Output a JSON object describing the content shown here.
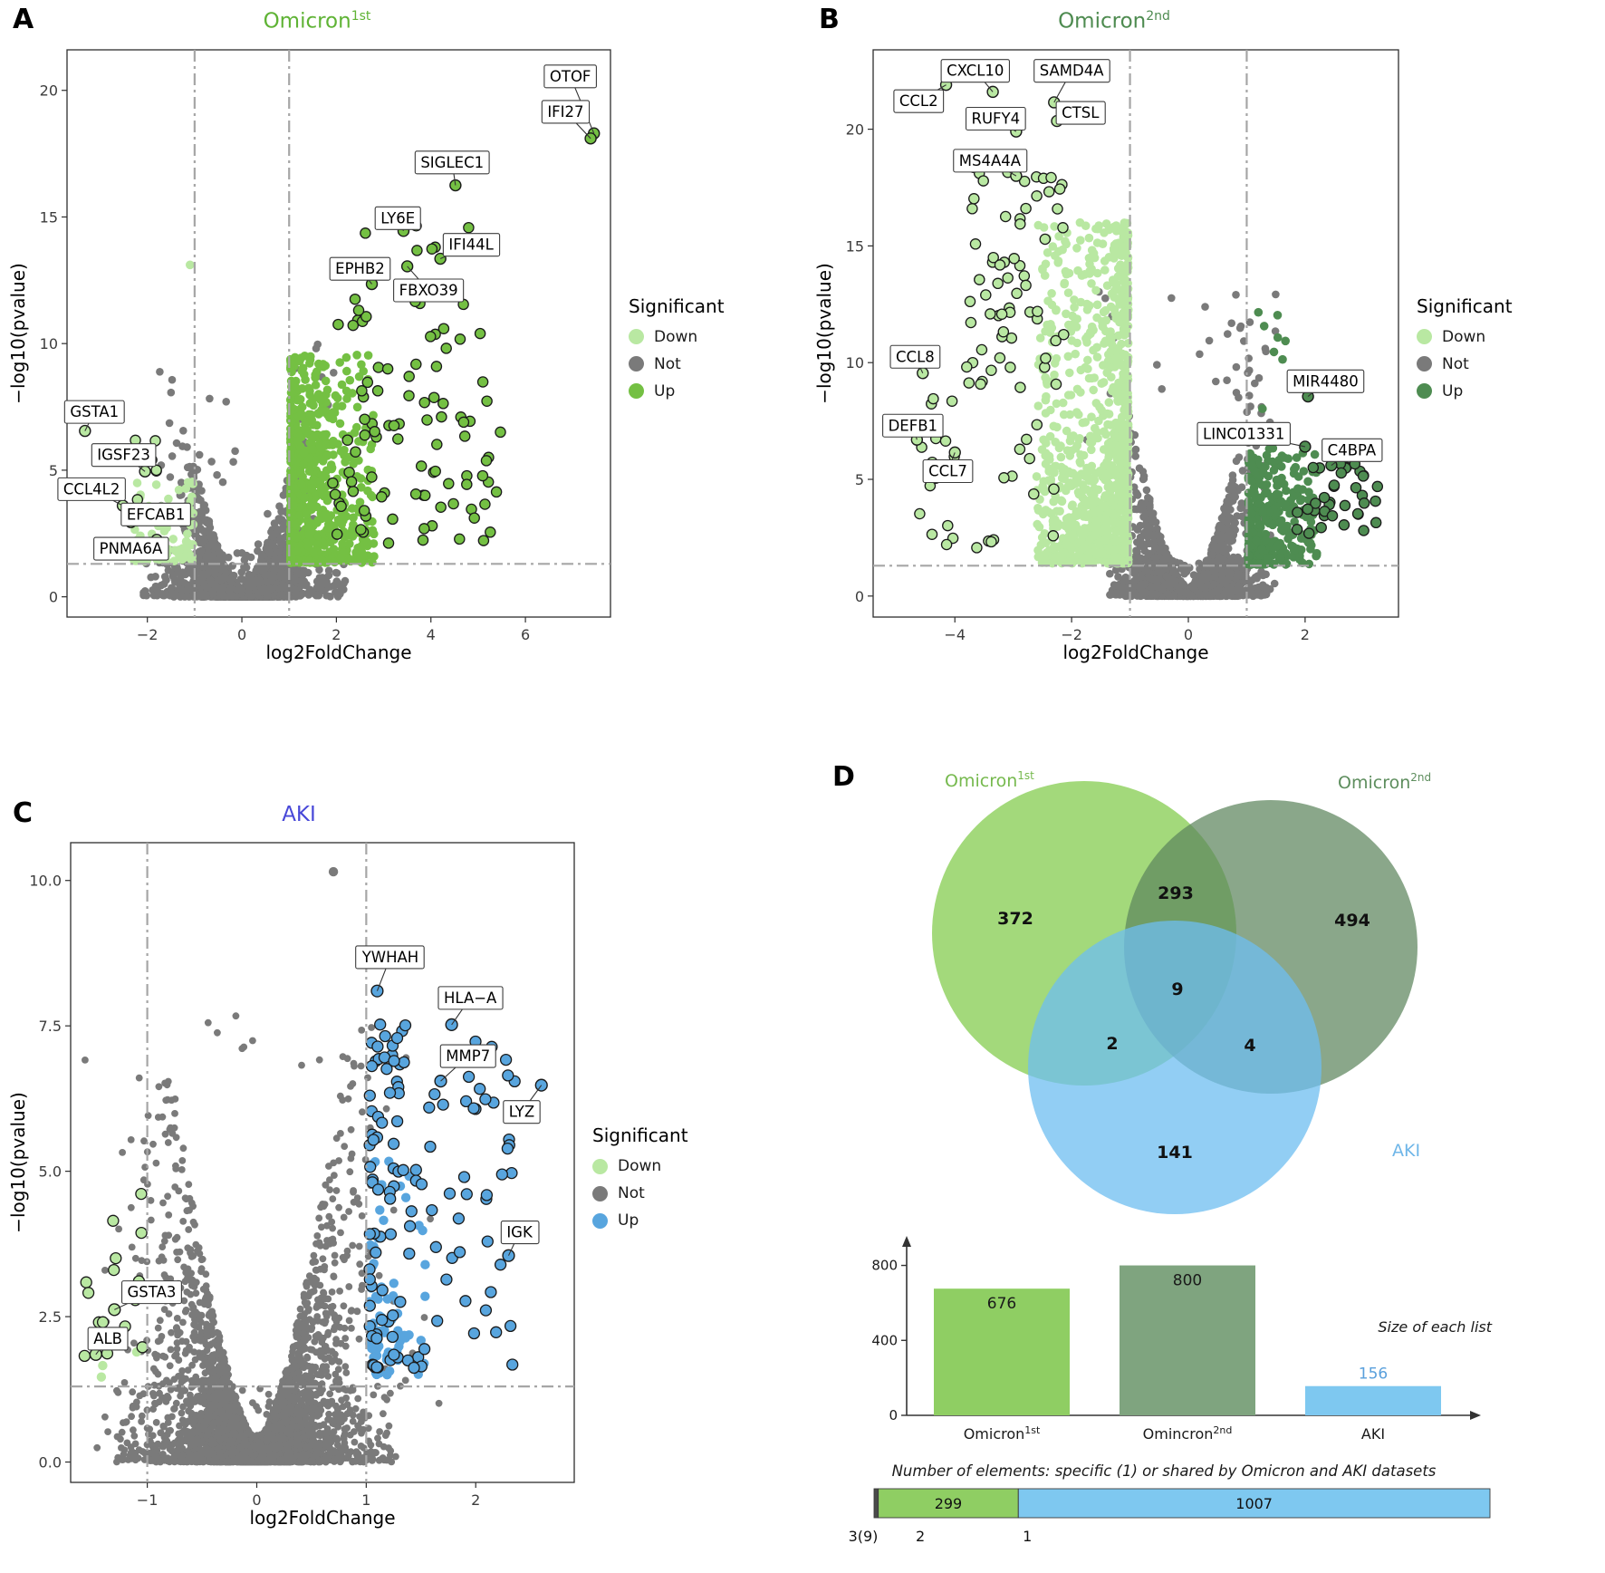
{
  "panels": {
    "a": {
      "letter": "A",
      "title": "Omicron",
      "title_sup": "1st",
      "title_color": "#5fb335"
    },
    "b": {
      "letter": "B",
      "title": "Omicron",
      "title_sup": "2nd",
      "title_color": "#4e8b50"
    },
    "c": {
      "letter": "C",
      "title": "AKI",
      "title_sup": "",
      "title_color": "#4848d8"
    },
    "d": {
      "letter": "D"
    }
  },
  "chart_data": [
    {
      "id": "volcano-omicron-1st",
      "type": "scatter",
      "subtype": "volcano",
      "title": "Omicron 1st",
      "xlabel": "log2FoldChange",
      "ylabel": "−log10(pvalue)",
      "xlim": [
        -3.7,
        7.8
      ],
      "ylim": [
        -0.8,
        21.6
      ],
      "xticks": [
        -2,
        0,
        2,
        4,
        6
      ],
      "xtick_labels": [
        "−2",
        "0",
        "2",
        "4",
        "6"
      ],
      "yticks": [
        0,
        5,
        10,
        15,
        20
      ],
      "ytick_labels": [
        "0",
        "5",
        "10",
        "15",
        "20"
      ],
      "vlines": [
        -1,
        1
      ],
      "hline": 1.3,
      "colors": {
        "down": "#b9e8a2",
        "not": "#7a7a7a",
        "up": "#74c043",
        "outline": "#1a1a1a"
      },
      "legend": {
        "title": "Significant",
        "entries": [
          {
            "label": "Down",
            "color": "#b9e8a2"
          },
          {
            "label": "Not",
            "color": "#7a7a7a"
          },
          {
            "label": "Up",
            "color": "#74c043"
          }
        ]
      },
      "labeled_genes": [
        {
          "gene": "OTOF",
          "g": "up",
          "x": 7.45,
          "y": 18.3,
          "lx": 6.95,
          "ly": 20.55
        },
        {
          "gene": "IFI27",
          "g": "up",
          "x": 7.38,
          "y": 18.1,
          "lx": 6.85,
          "ly": 19.15
        },
        {
          "gene": "SIGLEC1",
          "g": "up",
          "x": 4.52,
          "y": 16.25,
          "lx": 4.45,
          "ly": 17.15
        },
        {
          "gene": "LY6E",
          "g": "up",
          "x": 3.42,
          "y": 14.45,
          "lx": 3.3,
          "ly": 14.95
        },
        {
          "gene": "IFI44L",
          "g": "up",
          "x": 4.2,
          "y": 13.35,
          "lx": 4.85,
          "ly": 13.9
        },
        {
          "gene": "EPHB2",
          "g": "up",
          "x": 2.75,
          "y": 12.35,
          "lx": 2.5,
          "ly": 12.95
        },
        {
          "gene": "FBXO39",
          "g": "up",
          "x": 3.5,
          "y": 13.05,
          "lx": 3.95,
          "ly": 12.1
        },
        {
          "gene": "GSTA1",
          "g": "down",
          "x": -3.32,
          "y": 6.55,
          "lx": -3.12,
          "ly": 7.3
        },
        {
          "gene": "IGSF23",
          "g": "down",
          "x": -2.05,
          "y": 4.95,
          "lx": -2.5,
          "ly": 5.6
        },
        {
          "gene": "CCL4L2",
          "g": "down",
          "x": -2.52,
          "y": 3.6,
          "lx": -3.18,
          "ly": 4.25
        },
        {
          "gene": "EFCAB1",
          "g": "down",
          "x": -2.35,
          "y": 2.95,
          "lx": -1.82,
          "ly": 3.25
        },
        {
          "gene": "PNMA6A",
          "g": "down",
          "x": -1.8,
          "y": 2.25,
          "lx": -2.35,
          "ly": 1.9
        }
      ],
      "point_clouds": [
        {
          "kind": "volcano",
          "group": "not",
          "n": 2400,
          "xsd": 0.58,
          "p": 1.6,
          "yscale": 2.0,
          "ycap": 10.3,
          "seed": 101
        },
        {
          "kind": "box",
          "group": "not",
          "n": 240,
          "x": [
            -2.15,
            2.2
          ],
          "ybase": 0.05,
          "yspread": 1.8,
          "ybias": 2.2,
          "seed": 102
        },
        {
          "kind": "box",
          "group": "not",
          "n": 22,
          "x": [
            -1.5,
            1.6
          ],
          "ybase": 2.0,
          "yspread": 7.2,
          "ybias": 1,
          "seed": 103
        },
        {
          "kind": "box",
          "group": "down",
          "n": 80,
          "x": [
            -2.42,
            -1.03
          ],
          "xbias": -1.6,
          "ybase": 1.4,
          "yspread": 3.2,
          "ybias": 1.7,
          "seed": 104
        },
        {
          "kind": "box",
          "group": "down",
          "n": 1,
          "x": [
            -1.12,
            -1.05
          ],
          "ybase": 13.1,
          "yspread": 0.1,
          "ybias": 1,
          "seed": 105
        },
        {
          "kind": "box",
          "group": "down",
          "n": 7,
          "x": [
            -2.55,
            -1.35
          ],
          "ybase": 2.4,
          "yspread": 4.2,
          "ybias": 1,
          "outlined": true,
          "seed": 106
        },
        {
          "kind": "box",
          "group": "up",
          "n": 620,
          "x": [
            1.03,
            2.8
          ],
          "xbias": 2.4,
          "ybase": 1.35,
          "yspread": 8.2,
          "ybias": 1.8,
          "seed": 107
        },
        {
          "kind": "box",
          "group": "up",
          "n": 160,
          "x": [
            1.03,
            2.0
          ],
          "xbias": 1.6,
          "ybase": 1.35,
          "yspread": 5.2,
          "ybias": 1.4,
          "seed": 108
        },
        {
          "kind": "box",
          "group": "up",
          "n": 80,
          "x": [
            1.9,
            5.4
          ],
          "xbias": 1.25,
          "ybase": 2.0,
          "yspread": 9.2,
          "ybias": 1.05,
          "outlined": true,
          "seed": 109
        },
        {
          "kind": "box",
          "group": "up",
          "n": 15,
          "x": [
            2.3,
            4.9
          ],
          "ybase": 9.6,
          "yspread": 5.8,
          "ybias": 1,
          "outlined": true,
          "seed": 110
        },
        {
          "kind": "box",
          "group": "up",
          "n": 6,
          "x": [
            4.6,
            5.6
          ],
          "ybase": 2.5,
          "yspread": 5.0,
          "ybias": 1,
          "outlined": true,
          "seed": 111
        }
      ],
      "extra_points": []
    },
    {
      "id": "volcano-omicron-2nd",
      "type": "scatter",
      "subtype": "volcano",
      "title": "Omicron 2nd",
      "xlabel": "log2FoldChange",
      "ylabel": "−log10(pvalue)",
      "xlim": [
        -5.4,
        3.6
      ],
      "ylim": [
        -0.9,
        23.4
      ],
      "xticks": [
        -4,
        -2,
        0,
        2
      ],
      "xtick_labels": [
        "−4",
        "−2",
        "0",
        "2"
      ],
      "yticks": [
        0,
        5,
        10,
        15,
        20
      ],
      "ytick_labels": [
        "0",
        "5",
        "10",
        "15",
        "20"
      ],
      "vlines": [
        -1,
        1
      ],
      "hline": 1.3,
      "colors": {
        "down": "#b9e8a2",
        "not": "#7a7a7a",
        "up": "#4e8c51",
        "outline": "#1a1a1a"
      },
      "legend": {
        "title": "Significant",
        "entries": [
          {
            "label": "Down",
            "color": "#b9e8a2"
          },
          {
            "label": "Not",
            "color": "#7a7a7a"
          },
          {
            "label": "Up",
            "color": "#4e8c51"
          }
        ]
      },
      "labeled_genes": [
        {
          "gene": "CXCL10",
          "g": "down",
          "x": -3.35,
          "y": 21.6,
          "lx": -3.65,
          "ly": 22.5
        },
        {
          "gene": "SAMD4A",
          "g": "down",
          "x": -2.3,
          "y": 21.15,
          "lx": -2.0,
          "ly": 22.5
        },
        {
          "gene": "CCL2",
          "g": "down",
          "x": -4.15,
          "y": 21.9,
          "lx": -4.62,
          "ly": 21.2
        },
        {
          "gene": "RUFY4",
          "g": "down",
          "x": -2.95,
          "y": 19.9,
          "lx": -3.3,
          "ly": 20.45
        },
        {
          "gene": "CTSL",
          "g": "down",
          "x": -2.25,
          "y": 20.35,
          "lx": -1.85,
          "ly": 20.7
        },
        {
          "gene": "MS4A4A",
          "g": "down",
          "x": -2.95,
          "y": 18.0,
          "lx": -3.4,
          "ly": 18.65
        },
        {
          "gene": "CCL8",
          "g": "down",
          "x": -4.55,
          "y": 9.55,
          "lx": -4.68,
          "ly": 10.25
        },
        {
          "gene": "DEFB1",
          "g": "down",
          "x": -4.65,
          "y": 6.7,
          "lx": -4.72,
          "ly": 7.3
        },
        {
          "gene": "CCL7",
          "g": "down",
          "x": -4.0,
          "y": 6.15,
          "lx": -4.12,
          "ly": 5.35
        },
        {
          "gene": "MIR4480",
          "g": "up",
          "x": 2.05,
          "y": 8.55,
          "lx": 2.35,
          "ly": 9.2
        },
        {
          "gene": "LINC01331",
          "g": "up",
          "x": 2.0,
          "y": 6.4,
          "lx": 0.95,
          "ly": 6.95
        },
        {
          "gene": "C4BPA",
          "g": "up",
          "x": 2.45,
          "y": 5.6,
          "lx": 2.8,
          "ly": 6.25
        }
      ],
      "point_clouds": [
        {
          "kind": "volcano",
          "group": "not",
          "n": 2200,
          "xsd": 0.5,
          "p": 1.6,
          "yscale": 2.5,
          "ycap": 13.2,
          "seed": 201
        },
        {
          "kind": "box",
          "group": "not",
          "n": 220,
          "x": [
            -1.35,
            1.35
          ],
          "ybase": 0.05,
          "yspread": 1.5,
          "ybias": 2.2,
          "seed": 202
        },
        {
          "kind": "box",
          "group": "not",
          "n": 16,
          "x": [
            0.8,
            1.35
          ],
          "ybase": 8.0,
          "yspread": 5.3,
          "ybias": 1,
          "seed": 203
        },
        {
          "kind": "box",
          "group": "not",
          "n": 10,
          "x": [
            -0.6,
            0.75
          ],
          "ybase": 8.0,
          "yspread": 5.0,
          "ybias": 1,
          "seed": 204
        },
        {
          "kind": "box",
          "group": "down",
          "n": 780,
          "x": [
            -2.6,
            -1.03
          ],
          "xbias": -2.0,
          "ybase": 1.4,
          "yspread": 14.6,
          "ybias": 1.45,
          "seed": 205
        },
        {
          "kind": "box",
          "group": "down",
          "n": 260,
          "x": [
            -2.35,
            -1.03
          ],
          "xbias": -1.5,
          "ybase": 1.4,
          "yspread": 4.2,
          "ybias": 1.6,
          "seed": 206
        },
        {
          "kind": "box",
          "group": "down",
          "n": 62,
          "x": [
            -3.85,
            -2.1
          ],
          "ybase": 9.0,
          "yspread": 9.5,
          "ybias": 1,
          "outlined": true,
          "seed": 207
        },
        {
          "kind": "box",
          "group": "down",
          "n": 30,
          "x": [
            -4.9,
            -2.3
          ],
          "ybase": 2.0,
          "yspread": 7.0,
          "ybias": 1.2,
          "outlined": true,
          "seed": 208
        },
        {
          "kind": "box",
          "group": "up",
          "n": 300,
          "x": [
            1.03,
            2.2
          ],
          "xbias": 2.0,
          "ybase": 1.35,
          "yspread": 5.0,
          "ybias": 1.5,
          "seed": 209
        },
        {
          "kind": "box",
          "group": "up",
          "n": 9,
          "x": [
            1.05,
            1.7
          ],
          "ybase": 6.5,
          "yspread": 6.2,
          "ybias": 1,
          "seed": 210
        },
        {
          "kind": "box",
          "group": "up",
          "n": 36,
          "x": [
            1.85,
            3.35
          ],
          "ybase": 2.6,
          "yspread": 3.1,
          "ybias": 1,
          "outlined": true,
          "seed": 211
        }
      ],
      "extra_points": []
    },
    {
      "id": "volcano-aki",
      "type": "scatter",
      "subtype": "volcano",
      "title": "AKI",
      "xlabel": "log2FoldChange",
      "ylabel": "−log10(pvalue)",
      "xlim": [
        -1.7,
        2.9
      ],
      "ylim": [
        -0.35,
        10.65
      ],
      "xticks": [
        -1,
        0,
        1,
        2
      ],
      "xtick_labels": [
        "−1",
        "0",
        "1",
        "2"
      ],
      "yticks": [
        0,
        2.5,
        5,
        7.5,
        10
      ],
      "ytick_labels": [
        "0.0",
        "2.5",
        "5.0",
        "7.5",
        "10.0"
      ],
      "vlines": [
        -1,
        1
      ],
      "hline": 1.3,
      "colors": {
        "down": "#b9e8a2",
        "not": "#7a7a7a",
        "up": "#58a5de",
        "outline": "#1a1a1a"
      },
      "legend": {
        "title": "Significant",
        "entries": [
          {
            "label": "Down",
            "color": "#b9e8a2"
          },
          {
            "label": "Not",
            "color": "#7a7a7a"
          },
          {
            "label": "Up",
            "color": "#58a5de"
          }
        ]
      },
      "labeled_genes": [
        {
          "gene": "YWHAH",
          "g": "up",
          "x": 1.1,
          "y": 8.1,
          "lx": 1.22,
          "ly": 8.68
        },
        {
          "gene": "HLA−A",
          "g": "up",
          "x": 1.78,
          "y": 7.52,
          "lx": 1.95,
          "ly": 7.98
        },
        {
          "gene": "MMP7",
          "g": "up",
          "x": 1.68,
          "y": 6.55,
          "lx": 1.93,
          "ly": 6.98
        },
        {
          "gene": "LYZ",
          "g": "up",
          "x": 2.6,
          "y": 6.48,
          "lx": 2.42,
          "ly": 6.02
        },
        {
          "gene": "IGK",
          "g": "up",
          "x": 2.3,
          "y": 3.55,
          "lx": 2.4,
          "ly": 3.95
        },
        {
          "gene": "GSTA3",
          "g": "down",
          "x": -1.3,
          "y": 2.62,
          "lx": -0.96,
          "ly": 2.92
        },
        {
          "gene": "ALB",
          "g": "down",
          "x": -1.47,
          "y": 1.85,
          "lx": -1.36,
          "ly": 2.12
        }
      ],
      "point_clouds": [
        {
          "kind": "volcano",
          "group": "not",
          "n": 3600,
          "xsd": 0.43,
          "p": 1.5,
          "yscale": 2.6,
          "ycap": 7.6,
          "seed": 301
        },
        {
          "kind": "box",
          "group": "not",
          "n": 320,
          "x": [
            -1.28,
            1.22
          ],
          "ybase": 0.02,
          "yspread": 1.3,
          "ybias": 2.2,
          "seed": 302
        },
        {
          "kind": "box",
          "group": "not",
          "n": 10,
          "x": [
            -0.95,
            0.95
          ],
          "ybase": 6.3,
          "yspread": 1.4,
          "ybias": 1,
          "seed": 303
        },
        {
          "kind": "box",
          "group": "down",
          "n": 17,
          "x": [
            -1.58,
            -1.04
          ],
          "ybase": 1.7,
          "yspread": 3.0,
          "ybias": 1,
          "outlined": true,
          "seed": 304
        },
        {
          "kind": "box",
          "group": "down",
          "n": 5,
          "x": [
            -1.5,
            -1.06
          ],
          "ybase": 1.4,
          "yspread": 0.7,
          "ybias": 1,
          "seed": 305
        },
        {
          "kind": "box",
          "group": "up",
          "n": 115,
          "x": [
            1.03,
            2.4
          ],
          "xbias": 2.1,
          "ybase": 1.6,
          "yspread": 5.7,
          "ybias": 1.35,
          "outlined": true,
          "seed": 306
        },
        {
          "kind": "box",
          "group": "up",
          "n": 75,
          "x": [
            1.03,
            1.55
          ],
          "xbias": 1.5,
          "ybase": 1.5,
          "yspread": 3.8,
          "ybias": 1.5,
          "seed": 307
        },
        {
          "kind": "box",
          "group": "up",
          "n": 7,
          "x": [
            1.05,
            1.5
          ],
          "ybase": 6.8,
          "yspread": 0.9,
          "ybias": 1,
          "outlined": true,
          "seed": 308
        }
      ],
      "extra_points": [
        {
          "x": 0.7,
          "y": 10.15,
          "group": "not"
        }
      ]
    },
    {
      "id": "venn-omicron-aki",
      "type": "venn",
      "sets": [
        {
          "label": "Omicron",
          "sup": "1st",
          "color": "#8ccf5a",
          "label_color": "#76b94e"
        },
        {
          "label": "Omicron",
          "sup": "2nd",
          "color": "#5d855d",
          "label_color": "#5d8d5d"
        },
        {
          "label": "AKI",
          "sup": "",
          "color": "#6dbdf0",
          "label_color": "#6fb6e8"
        }
      ],
      "regions": {
        "a_only": 372,
        "ab": 293,
        "b_only": 494,
        "abc": 9,
        "ac": 2,
        "bc": 4,
        "c_only": 141
      }
    },
    {
      "id": "list-sizes-bar",
      "type": "bar",
      "annotation": "Size of each list",
      "categories": [
        {
          "base": "Omicron",
          "sup": "1st"
        },
        {
          "base": "Omincron",
          "sup": "2nd"
        },
        {
          "base": "AKI",
          "sup": ""
        }
      ],
      "values": [
        676,
        800,
        156
      ],
      "colors": [
        "#8fce63",
        "#7fa47f",
        "#7ec8f0"
      ],
      "value_label_colors": [
        "#1a1a1a",
        "#1a1a1a",
        "#5aa0dc"
      ],
      "label_pos": [
        "inside",
        "inside",
        "above"
      ],
      "yticks": [
        0,
        400,
        800
      ],
      "ylim": [
        0,
        880
      ]
    },
    {
      "id": "shared-elements-bar",
      "type": "stacked_bar",
      "title": "Number of elements: specific (1) or shared by Omicron and AKI datasets",
      "segments": [
        {
          "label": "3(9)",
          "value": 9,
          "color": "#4a4a4a",
          "show_value": false
        },
        {
          "label": "2",
          "value": 299,
          "color": "#8fce63",
          "show_value": true
        },
        {
          "label": "1",
          "value": 1007,
          "color": "#7ec8f0",
          "show_value": true
        }
      ]
    }
  ]
}
